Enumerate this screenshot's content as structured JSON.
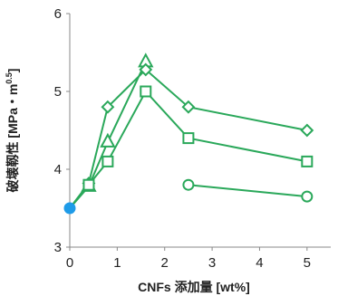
{
  "chart_data": {
    "type": "line",
    "title": "",
    "xlabel": "CNFs 添加量 [wt%]",
    "ylabel": "破壊靱性 [MPa・m",
    "ylabel_exponent": "0.5",
    "ylabel_close": "]",
    "xlim": [
      0,
      5.5
    ],
    "ylim": [
      3,
      6
    ],
    "x_ticks": [
      0,
      1,
      2,
      3,
      4,
      5
    ],
    "y_ticks": [
      3,
      4,
      5,
      6
    ],
    "grid": false,
    "legend": "none",
    "colors": {
      "series": "#2aa85a",
      "origin_point": "#1e9be8",
      "axis": "#888888"
    },
    "origin": {
      "x": 0,
      "y": 3.5
    },
    "series": [
      {
        "marker": "triangle",
        "x": [
          0,
          0.4,
          0.8,
          1.6
        ],
        "y": [
          3.5,
          3.78,
          4.35,
          5.38
        ]
      },
      {
        "marker": "diamond",
        "x": [
          0,
          0.4,
          0.8,
          1.6,
          2.5,
          5
        ],
        "y": [
          3.5,
          3.82,
          4.8,
          5.28,
          4.8,
          4.5
        ]
      },
      {
        "marker": "square",
        "x": [
          0,
          0.4,
          0.8,
          1.6,
          2.5,
          5
        ],
        "y": [
          3.5,
          3.8,
          4.1,
          5.0,
          4.4,
          4.1
        ]
      },
      {
        "marker": "circle",
        "x": [
          2.5,
          5
        ],
        "y": [
          3.8,
          3.65
        ]
      }
    ]
  }
}
